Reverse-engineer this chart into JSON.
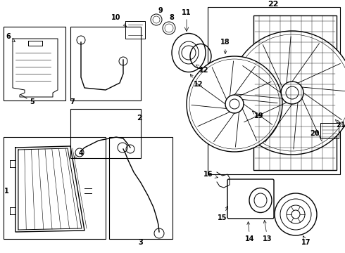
{
  "background_color": "#ffffff",
  "line_color": "#000000",
  "lw_thin": 0.7,
  "lw_med": 1.0,
  "lw_thick": 1.4,
  "fontsize": 7,
  "fontsize_big": 8
}
